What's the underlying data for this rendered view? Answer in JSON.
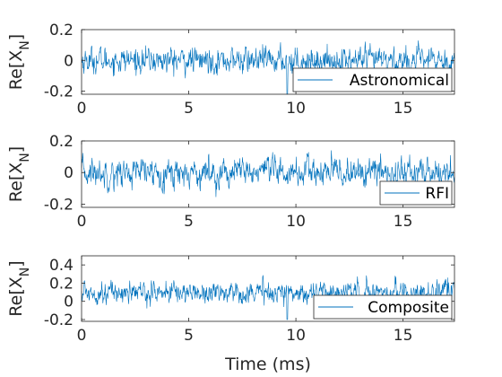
{
  "chart_data": [
    {
      "type": "line",
      "ylabel": "Re[X_N]",
      "xlim": [
        0,
        17.4
      ],
      "ylim": [
        -0.22,
        0.2
      ],
      "xticks": [
        0,
        5,
        10,
        15
      ],
      "yticks": [
        -0.2,
        0,
        0.2
      ],
      "ytick_labels": [
        "-0.2",
        "0",
        "0.2"
      ],
      "legend": "Astronomical",
      "legend_position": "bottom-right",
      "line_color": "#0072BD",
      "series": [
        {
          "name": "Astronomical",
          "signal": "noise",
          "mean": 0.0,
          "std": 0.06,
          "x_range": [
            0,
            17.4
          ],
          "samples": 1000,
          "dip": {
            "x": 9.6,
            "y": -0.22
          }
        }
      ]
    },
    {
      "type": "line",
      "ylabel": "Re[X_N]",
      "xlim": [
        0,
        17.4
      ],
      "ylim": [
        -0.22,
        0.2
      ],
      "xticks": [
        0,
        5,
        10,
        15
      ],
      "yticks": [
        -0.2,
        0,
        0.2
      ],
      "ytick_labels": [
        "-0.2",
        "0",
        "0.2"
      ],
      "legend": "RFI",
      "legend_position": "bottom-right",
      "line_color": "#0072BD",
      "series": [
        {
          "name": "RFI",
          "signal": "noise",
          "mean": 0.0,
          "std": 0.065,
          "x_range": [
            0,
            17.4
          ],
          "samples": 1000
        }
      ]
    },
    {
      "type": "line",
      "ylabel": "Re[X_N]",
      "xlabel": "Time (ms)",
      "xlim": [
        0,
        17.4
      ],
      "ylim": [
        -0.22,
        0.5
      ],
      "xticks": [
        0,
        5,
        10,
        15
      ],
      "yticks": [
        -0.2,
        0,
        0.2,
        0.4
      ],
      "ytick_labels": [
        "-0.2",
        "0",
        "0.2",
        "0.4"
      ],
      "legend": "Composite",
      "legend_position": "bottom-right",
      "line_color": "#0072BD",
      "series": [
        {
          "name": "Composite",
          "signal": "noise",
          "mean": 0.1,
          "std": 0.085,
          "x_range": [
            0,
            17.4
          ],
          "samples": 1000,
          "dip": {
            "x": 9.6,
            "y": -0.2
          }
        }
      ]
    }
  ]
}
